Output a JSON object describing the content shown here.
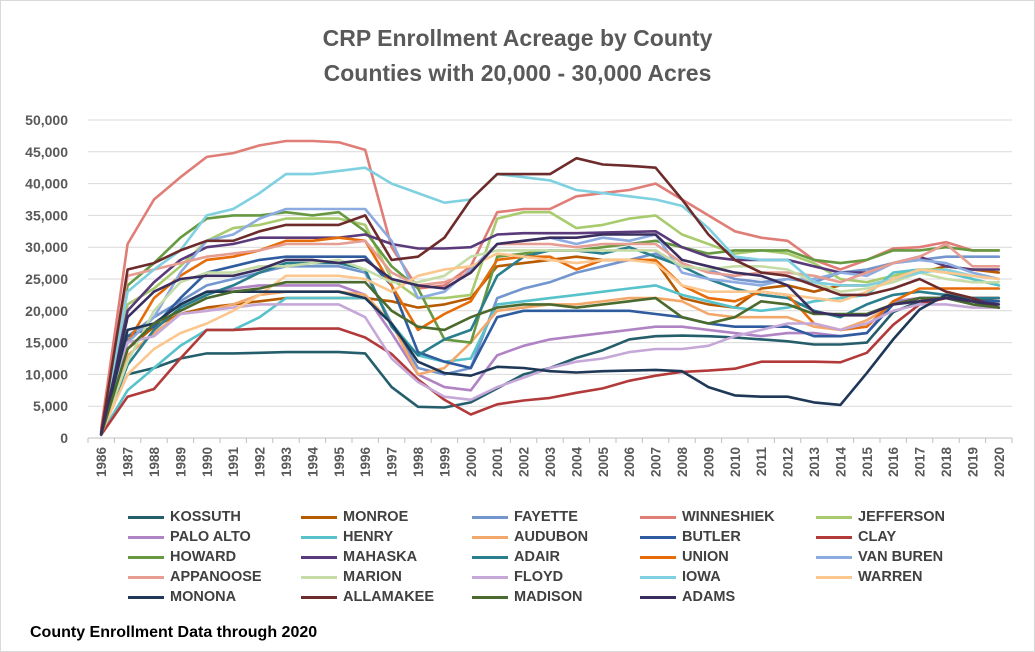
{
  "chart_data": {
    "type": "line",
    "title": "CRP Enrollment Acreage by County",
    "subtitle": "Counties with 20,000 - 30,000 Acres",
    "footer": "County Enrollment Data through 2020",
    "xlabel": "",
    "ylabel": "",
    "ylim": [
      0,
      50000
    ],
    "yticks": [
      "0",
      "5,000",
      "10,000",
      "15,000",
      "20,000",
      "25,000",
      "30,000",
      "35,000",
      "40,000",
      "45,000",
      "50,000"
    ],
    "grid": true,
    "legend_position": "bottom",
    "x": [
      "1986",
      "1987",
      "1988",
      "1989",
      "1990",
      "1991",
      "1992",
      "1993",
      "1994",
      "1995",
      "1996",
      "1997",
      "1998",
      "1999",
      "2000",
      "2001",
      "2002",
      "2003",
      "2004",
      "2005",
      "2006",
      "2007",
      "2008",
      "2009",
      "2010",
      "2011",
      "2012",
      "2013",
      "2014",
      "2015",
      "2016",
      "2017",
      "2018",
      "2019",
      "2020"
    ],
    "series": [
      {
        "name": "KOSSUTH",
        "color": "#255e6b",
        "values": [
          1000,
          10000,
          11000,
          12500,
          13300,
          13300,
          13400,
          13500,
          13500,
          13500,
          13300,
          8000,
          4900,
          4800,
          5600,
          7800,
          10000,
          11000,
          12600,
          13800,
          15500,
          16000,
          16100,
          16000,
          15800,
          15500,
          15200,
          14700,
          14700,
          15000,
          19800,
          21500,
          22000,
          21800,
          21500
        ]
      },
      {
        "name": "MONROE",
        "color": "#b85b00",
        "values": [
          800,
          14000,
          17500,
          19500,
          20500,
          21000,
          21500,
          22000,
          22000,
          22000,
          22000,
          21500,
          20500,
          21000,
          22000,
          27000,
          27500,
          28000,
          28500,
          28000,
          28000,
          27800,
          22000,
          21000,
          20500,
          23500,
          24000,
          23000,
          24000,
          24000,
          25000,
          26000,
          27000,
          26500,
          26000
        ]
      },
      {
        "name": "FAYETTE",
        "color": "#7396cf",
        "values": [
          700,
          16000,
          19000,
          21500,
          24000,
          25000,
          26000,
          27000,
          27000,
          27000,
          26000,
          18000,
          11000,
          10000,
          11000,
          22000,
          23500,
          24500,
          26000,
          27000,
          28000,
          29000,
          27000,
          26500,
          25000,
          24500,
          25000,
          24500,
          26000,
          26500,
          27500,
          28000,
          28500,
          28500,
          28500
        ]
      },
      {
        "name": "WINNESHIEK",
        "color": "#e07d77",
        "values": [
          1500,
          30500,
          37500,
          41000,
          44200,
          44800,
          46000,
          46700,
          46700,
          46500,
          45300,
          30000,
          23500,
          24000,
          27000,
          35500,
          36000,
          36000,
          38000,
          38500,
          39000,
          40000,
          37500,
          35000,
          32500,
          31500,
          31000,
          28000,
          26500,
          28000,
          29800,
          30000,
          30800,
          29500,
          29500
        ]
      },
      {
        "name": "JEFFERSON",
        "color": "#a8cb6e",
        "values": [
          700,
          21000,
          23500,
          27000,
          31000,
          33000,
          33500,
          34500,
          34500,
          34500,
          33500,
          25000,
          22000,
          22000,
          22500,
          34500,
          35500,
          35500,
          33000,
          33500,
          34500,
          35000,
          32000,
          30500,
          29000,
          29500,
          29000,
          27500,
          25000,
          24500,
          25500,
          26500,
          26500,
          25000,
          24000
        ]
      },
      {
        "name": "PALO ALTO",
        "color": "#b083c4",
        "values": [
          600,
          14000,
          18000,
          21000,
          23000,
          23500,
          24000,
          24000,
          24000,
          24000,
          22500,
          16500,
          10000,
          8000,
          7500,
          13000,
          14500,
          15500,
          16000,
          16500,
          17000,
          17500,
          17500,
          17000,
          16500,
          16000,
          16500,
          16500,
          16000,
          16500,
          21500,
          22000,
          22000,
          21500,
          21000
        ]
      },
      {
        "name": "HENRY",
        "color": "#57c2c9",
        "values": [
          600,
          7500,
          11000,
          14500,
          17000,
          17000,
          19000,
          22000,
          22000,
          22000,
          22000,
          18000,
          13000,
          12000,
          12500,
          21000,
          21500,
          22000,
          22500,
          23000,
          23500,
          24000,
          22500,
          21500,
          20500,
          20000,
          20500,
          21500,
          22000,
          22500,
          26000,
          26500,
          26000,
          25000,
          24000
        ]
      },
      {
        "name": "AUDUBON",
        "color": "#f3a86b",
        "values": [
          600,
          13000,
          16500,
          19500,
          20000,
          21000,
          22500,
          23000,
          23000,
          23000,
          22500,
          18000,
          10000,
          11000,
          15000,
          20000,
          20500,
          21000,
          21000,
          21500,
          22000,
          22000,
          21500,
          19500,
          19000,
          19000,
          19000,
          17500,
          17000,
          18500,
          21000,
          22000,
          22000,
          22000,
          22000
        ]
      },
      {
        "name": "BUTLER",
        "color": "#2e5c9e",
        "values": [
          600,
          16000,
          17500,
          22000,
          26000,
          27000,
          28000,
          28500,
          28500,
          28500,
          28500,
          24000,
          13500,
          12000,
          11000,
          19000,
          20000,
          20000,
          20000,
          20000,
          20000,
          19500,
          19000,
          18000,
          17500,
          17500,
          17500,
          16000,
          16000,
          16500,
          21000,
          22000,
          22000,
          21500,
          21500
        ]
      },
      {
        "name": "CLAY",
        "color": "#b33a3a",
        "values": [
          500,
          6500,
          7700,
          12500,
          17000,
          17000,
          17200,
          17200,
          17200,
          17200,
          15800,
          13200,
          9200,
          6000,
          3700,
          5300,
          5900,
          6300,
          7100,
          7800,
          9000,
          9800,
          10400,
          10600,
          10900,
          12000,
          12000,
          12000,
          11900,
          13400,
          17800,
          21000,
          22000,
          22000,
          22000
        ]
      },
      {
        "name": "HOWARD",
        "color": "#669940",
        "values": [
          900,
          24000,
          27500,
          31500,
          34500,
          35000,
          35000,
          35500,
          35000,
          35500,
          32500,
          27000,
          23500,
          15500,
          15000,
          28500,
          29000,
          29500,
          29500,
          30000,
          30500,
          31000,
          30000,
          29000,
          29500,
          29500,
          29500,
          28000,
          27500,
          28000,
          29500,
          29500,
          30000,
          29500,
          29500
        ]
      },
      {
        "name": "MAHASKA",
        "color": "#5a3a7a",
        "values": [
          1000,
          20000,
          24500,
          28000,
          30000,
          30500,
          31500,
          31500,
          31500,
          31500,
          32000,
          30500,
          29800,
          29800,
          30000,
          32000,
          32200,
          32200,
          32200,
          32300,
          32400,
          32500,
          30000,
          28500,
          28000,
          28000,
          28000,
          27000,
          26000,
          26000,
          27500,
          28500,
          27000,
          26500,
          26500
        ]
      },
      {
        "name": "ADAIR",
        "color": "#2a7f8e",
        "values": [
          700,
          11500,
          17000,
          20500,
          22500,
          24000,
          26000,
          27500,
          27500,
          27500,
          26500,
          17500,
          13000,
          15500,
          17000,
          25500,
          28500,
          29500,
          29500,
          29000,
          30000,
          28500,
          27000,
          25000,
          23500,
          22500,
          22000,
          20000,
          19000,
          21000,
          22500,
          23000,
          22500,
          22000,
          22000
        ]
      },
      {
        "name": "UNION",
        "color": "#e66c0a",
        "values": [
          600,
          15000,
          22000,
          25500,
          28000,
          28500,
          29500,
          31000,
          31000,
          31500,
          31000,
          24000,
          17000,
          19500,
          21500,
          28000,
          28500,
          28500,
          26500,
          28000,
          28000,
          28000,
          24000,
          22000,
          21500,
          23000,
          22500,
          18000,
          17000,
          17500,
          21500,
          23500,
          23500,
          23500,
          23500
        ]
      },
      {
        "name": "VAN BUREN",
        "color": "#8cabe0",
        "values": [
          700,
          15000,
          19000,
          26000,
          31000,
          32000,
          34500,
          36000,
          36000,
          36000,
          36000,
          31000,
          22000,
          23000,
          26500,
          30500,
          31000,
          31500,
          30500,
          31500,
          31000,
          32000,
          26000,
          25000,
          24500,
          24000,
          25000,
          25000,
          26000,
          25500,
          27500,
          28000,
          27500,
          26000,
          25000
        ]
      },
      {
        "name": "APPANOOSE",
        "color": "#e69d92",
        "values": [
          700,
          25500,
          26500,
          27500,
          28500,
          29000,
          29500,
          30500,
          30500,
          30500,
          31000,
          26000,
          24000,
          24500,
          26000,
          30500,
          30500,
          30500,
          30000,
          30500,
          30500,
          30500,
          27500,
          26000,
          25500,
          26000,
          26000,
          25500,
          24500,
          26000,
          27500,
          28500,
          30500,
          27000,
          27000
        ]
      },
      {
        "name": "MARION",
        "color": "#c6dca6",
        "values": [
          700,
          12000,
          20000,
          24500,
          26000,
          26000,
          27000,
          27000,
          27500,
          28000,
          26500,
          24500,
          24500,
          25500,
          28500,
          29500,
          29500,
          29500,
          29500,
          29500,
          29500,
          29500,
          27000,
          26500,
          27000,
          27000,
          26500,
          24500,
          23000,
          23500,
          24500,
          26000,
          25000,
          24500,
          24500
        ]
      },
      {
        "name": "FLOYD",
        "color": "#c6a8d8",
        "values": [
          500,
          15000,
          16000,
          19500,
          20000,
          20500,
          21000,
          21000,
          21000,
          21000,
          19000,
          12500,
          8800,
          6500,
          6000,
          8000,
          9500,
          11000,
          12000,
          12500,
          13500,
          14000,
          14000,
          14500,
          16000,
          17000,
          18000,
          18000,
          17000,
          18000,
          20000,
          21000,
          21000,
          20500,
          20500
        ]
      },
      {
        "name": "IOWA",
        "color": "#7fd0e0",
        "values": [
          700,
          23000,
          26500,
          29500,
          35000,
          36000,
          38500,
          41500,
          41500,
          42000,
          42500,
          40000,
          38500,
          37000,
          37500,
          41500,
          41000,
          40500,
          39000,
          38500,
          38000,
          37500,
          36500,
          33000,
          28500,
          28000,
          28000,
          24500,
          24000,
          24000,
          25000,
          26000,
          26500,
          25500,
          25000
        ]
      },
      {
        "name": "WARREN",
        "color": "#fbc78f",
        "values": [
          700,
          10000,
          14000,
          16500,
          18000,
          20000,
          22500,
          25500,
          25500,
          25500,
          25000,
          23000,
          25500,
          26500,
          27000,
          29000,
          28500,
          28000,
          27500,
          28000,
          28000,
          27500,
          24000,
          23000,
          23000,
          23000,
          22500,
          22000,
          21500,
          23000,
          25000,
          26500,
          26000,
          25500,
          25000
        ]
      },
      {
        "name": "MONONA",
        "color": "#1f3857",
        "values": [
          500,
          17000,
          18000,
          21000,
          23000,
          23000,
          23000,
          23000,
          23000,
          23000,
          22000,
          18000,
          12000,
          10200,
          9800,
          11200,
          11000,
          10500,
          10300,
          10500,
          10600,
          10700,
          10500,
          8000,
          6700,
          6500,
          6500,
          5600,
          5200,
          10200,
          15500,
          20200,
          22500,
          21500,
          20500
        ]
      },
      {
        "name": "ALLAMAKEE",
        "color": "#6e2b2b",
        "values": [
          800,
          26500,
          27500,
          29500,
          31000,
          31000,
          32500,
          33500,
          33500,
          33500,
          35000,
          28000,
          28500,
          31500,
          37500,
          41500,
          41500,
          41500,
          44000,
          43000,
          42800,
          42500,
          37500,
          32000,
          28000,
          26000,
          25500,
          24000,
          22500,
          22500,
          23500,
          25000,
          23000,
          22000,
          20500
        ]
      },
      {
        "name": "MADISON",
        "color": "#4b6a2e",
        "values": [
          500,
          14000,
          18000,
          20000,
          22000,
          23000,
          23500,
          24500,
          24500,
          24500,
          24500,
          20000,
          17500,
          17000,
          19000,
          20500,
          21000,
          21000,
          20500,
          21000,
          21500,
          22000,
          19000,
          18000,
          19000,
          21500,
          21000,
          19500,
          19500,
          19500,
          21000,
          22000,
          22000,
          21000,
          20500
        ]
      },
      {
        "name": "ADAMS",
        "color": "#3a2e5e",
        "values": [
          600,
          19000,
          23000,
          25000,
          25500,
          25500,
          26500,
          28000,
          28000,
          27500,
          28000,
          25000,
          24000,
          23500,
          26000,
          30500,
          31000,
          31500,
          31500,
          32000,
          32000,
          32000,
          28000,
          27000,
          26000,
          25500,
          24000,
          19800,
          19300,
          19300,
          21000,
          21500,
          22000,
          21500,
          21000
        ]
      }
    ]
  }
}
